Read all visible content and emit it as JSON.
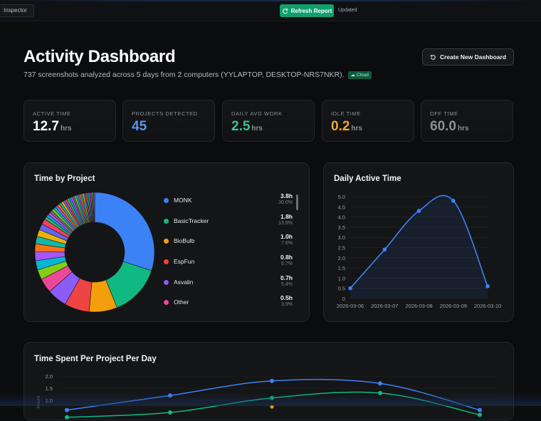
{
  "topbar": {
    "inspector_label": "Inspector",
    "refresh_label": "Refresh Report",
    "updated_label": "Updated"
  },
  "header": {
    "title": "Activity Dashboard",
    "subtitle": "737 screenshots analyzed across 5 days from 2 computers (YYLAPTOP, DESKTOP-NRS7NKR).",
    "badge": "☁ Cloud",
    "create_label": "Create New Dashboard"
  },
  "stats": [
    {
      "label": "ACTIVE TIME",
      "value": "12.7",
      "unit": "hrs",
      "color": "#ffffff"
    },
    {
      "label": "PROJECTS DETECTED",
      "value": "45",
      "unit": "",
      "color": "#5b93ef"
    },
    {
      "label": "DAILY AVG WORK",
      "value": "2.5",
      "unit": "hrs",
      "color": "#34c48b"
    },
    {
      "label": "IDLE TIME",
      "value": "0.2",
      "unit": "hrs",
      "color": "#f0a62e"
    },
    {
      "label": "OFF TIME",
      "value": "60.0",
      "unit": "hrs",
      "color": "#8a8f97"
    }
  ],
  "project_card": {
    "title": "Time by Project",
    "legend": [
      {
        "name": "MONK",
        "hours": "3.8h",
        "pct": "30.0%",
        "color": "#3b82f6"
      },
      {
        "name": "BasicTracker",
        "hours": "1.8h",
        "pct": "13.9%",
        "color": "#10b981"
      },
      {
        "name": "BioBulb",
        "hours": "1.0h",
        "pct": "7.6%",
        "color": "#f59e0b"
      },
      {
        "name": "EspFun",
        "hours": "0.8h",
        "pct": "6.7%",
        "color": "#ef4444"
      },
      {
        "name": "Asvalin",
        "hours": "0.7h",
        "pct": "5.4%",
        "color": "#8b5cf6"
      },
      {
        "name": "Other",
        "hours": "0.5h",
        "pct": "3.9%",
        "color": "#ec4899"
      }
    ]
  },
  "daily_card": {
    "title": "Daily Active Time"
  },
  "per_project_card": {
    "title": "Time Spent Per Project Per Day",
    "ylabel": "Hours"
  },
  "chart_data": [
    {
      "type": "pie",
      "title": "Time by Project",
      "labels": [
        "MONK",
        "BasicTracker",
        "BioBulb",
        "EspFun",
        "Asvalin",
        "Other"
      ],
      "values": [
        30.0,
        13.9,
        7.6,
        6.7,
        5.4,
        3.9
      ],
      "colors": [
        "#3b82f6",
        "#10b981",
        "#f59e0b",
        "#ef4444",
        "#8b5cf6",
        "#ec4899"
      ],
      "donut": true
    },
    {
      "type": "line",
      "title": "Daily Active Time",
      "x": [
        "2026-03-06",
        "2026-03-07",
        "2026-03-08",
        "2026-03-09",
        "2026-03-10"
      ],
      "y": [
        0.5,
        2.4,
        4.3,
        4.8,
        0.6
      ],
      "ylim": [
        0,
        5.0
      ],
      "yticks": [
        "0",
        "0.5",
        "1.0",
        "1.5",
        "2.0",
        "2.5",
        "3.0",
        "3.5",
        "4.0",
        "4.5",
        "5.0"
      ],
      "color": "#3b82f6",
      "grid": true
    },
    {
      "type": "line",
      "title": "Time Spent Per Project Per Day",
      "ylabel": "Hours",
      "yticks": [
        "1.0",
        "1.5",
        "2.0"
      ],
      "series": [
        {
          "color": "#3b82f6",
          "values": [
            0.6,
            1.2,
            1.8,
            1.7,
            0.6
          ]
        },
        {
          "color": "#10b981",
          "values": [
            0.3,
            0.5,
            1.1,
            1.3,
            0.4
          ]
        }
      ]
    }
  ]
}
